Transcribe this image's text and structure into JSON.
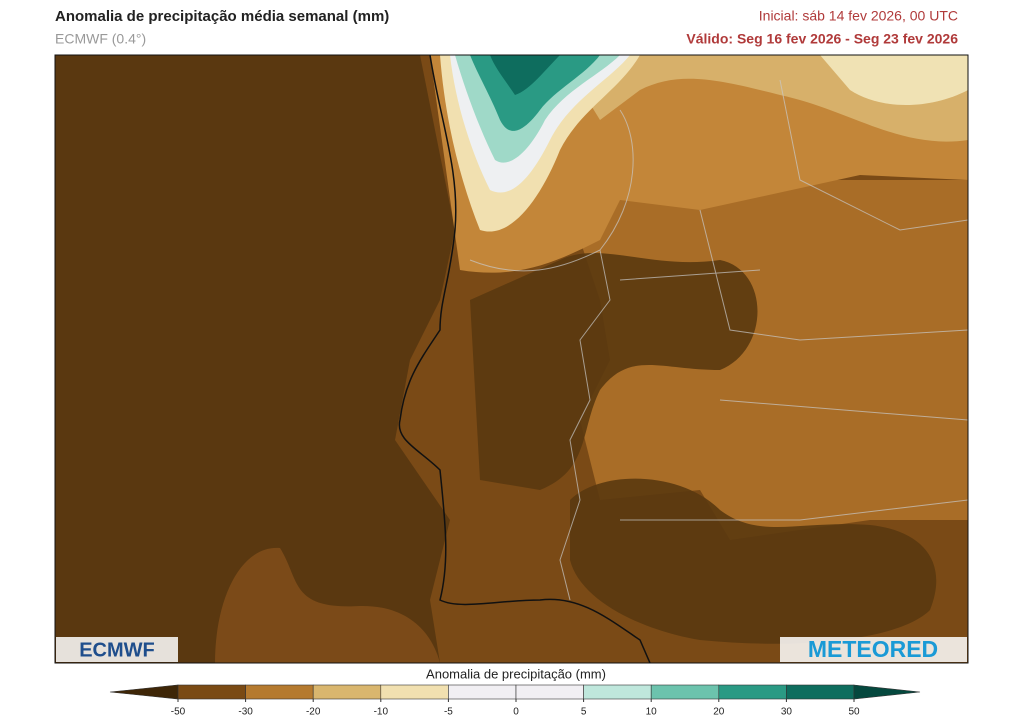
{
  "header": {
    "title": "Anomalia de precipitação média semanal (mm)",
    "subtitle": "ECMWF (0.4°)",
    "initial": "Inicial:  sáb 14 fev 2026, 00 UTC",
    "valid": "Válido: Seg 16 fev 2026 - Seg 23 fev 2026"
  },
  "logos": {
    "left": "ECMWF",
    "right": "METEORED"
  },
  "colorbar": {
    "title": "Anomalia de precipitação (mm)",
    "ticks": [
      -50,
      -30,
      -20,
      -10,
      -5,
      0,
      5,
      10,
      20,
      30,
      50
    ],
    "colors": [
      "#3e2607",
      "#7a4a14",
      "#b57a2f",
      "#d9b66e",
      "#f1e0b0",
      "#f1eff3",
      "#f1eff3",
      "#bfe7dc",
      "#6cc3ad",
      "#2a9a84",
      "#0e6d5e",
      "#05483e"
    ]
  }
}
